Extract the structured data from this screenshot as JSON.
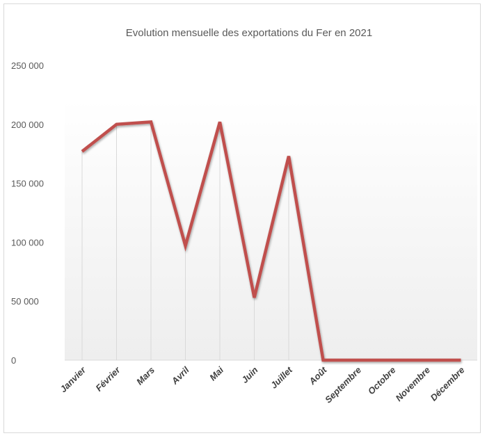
{
  "chart_data": {
    "type": "line",
    "title": "Evolution mensuelle des exportations du Fer en 2021",
    "xlabel": "",
    "ylabel": "",
    "categories": [
      "Janvier",
      "Février",
      "Mars",
      "Avril",
      "Mai",
      "Juin",
      "Juillet",
      "Août",
      "Septembre",
      "Octobre",
      "Novembre",
      "Décembre"
    ],
    "series": [
      {
        "values": [
          177000,
          200000,
          202000,
          97000,
          202000,
          53000,
          173000,
          0,
          0,
          0,
          0,
          0
        ]
      }
    ],
    "ylim": [
      0,
      250000
    ],
    "y_ticks": [
      0,
      50000,
      100000,
      150000,
      200000,
      250000
    ],
    "y_tick_labels": [
      "0",
      "50 000",
      "100 000",
      "150 000",
      "200 000",
      "250 000"
    ],
    "grid": "vertical drop lines",
    "legend": "none",
    "colors": {
      "line": "#c0504d",
      "dropline": "#d9d9d9",
      "text": "#595959"
    }
  }
}
